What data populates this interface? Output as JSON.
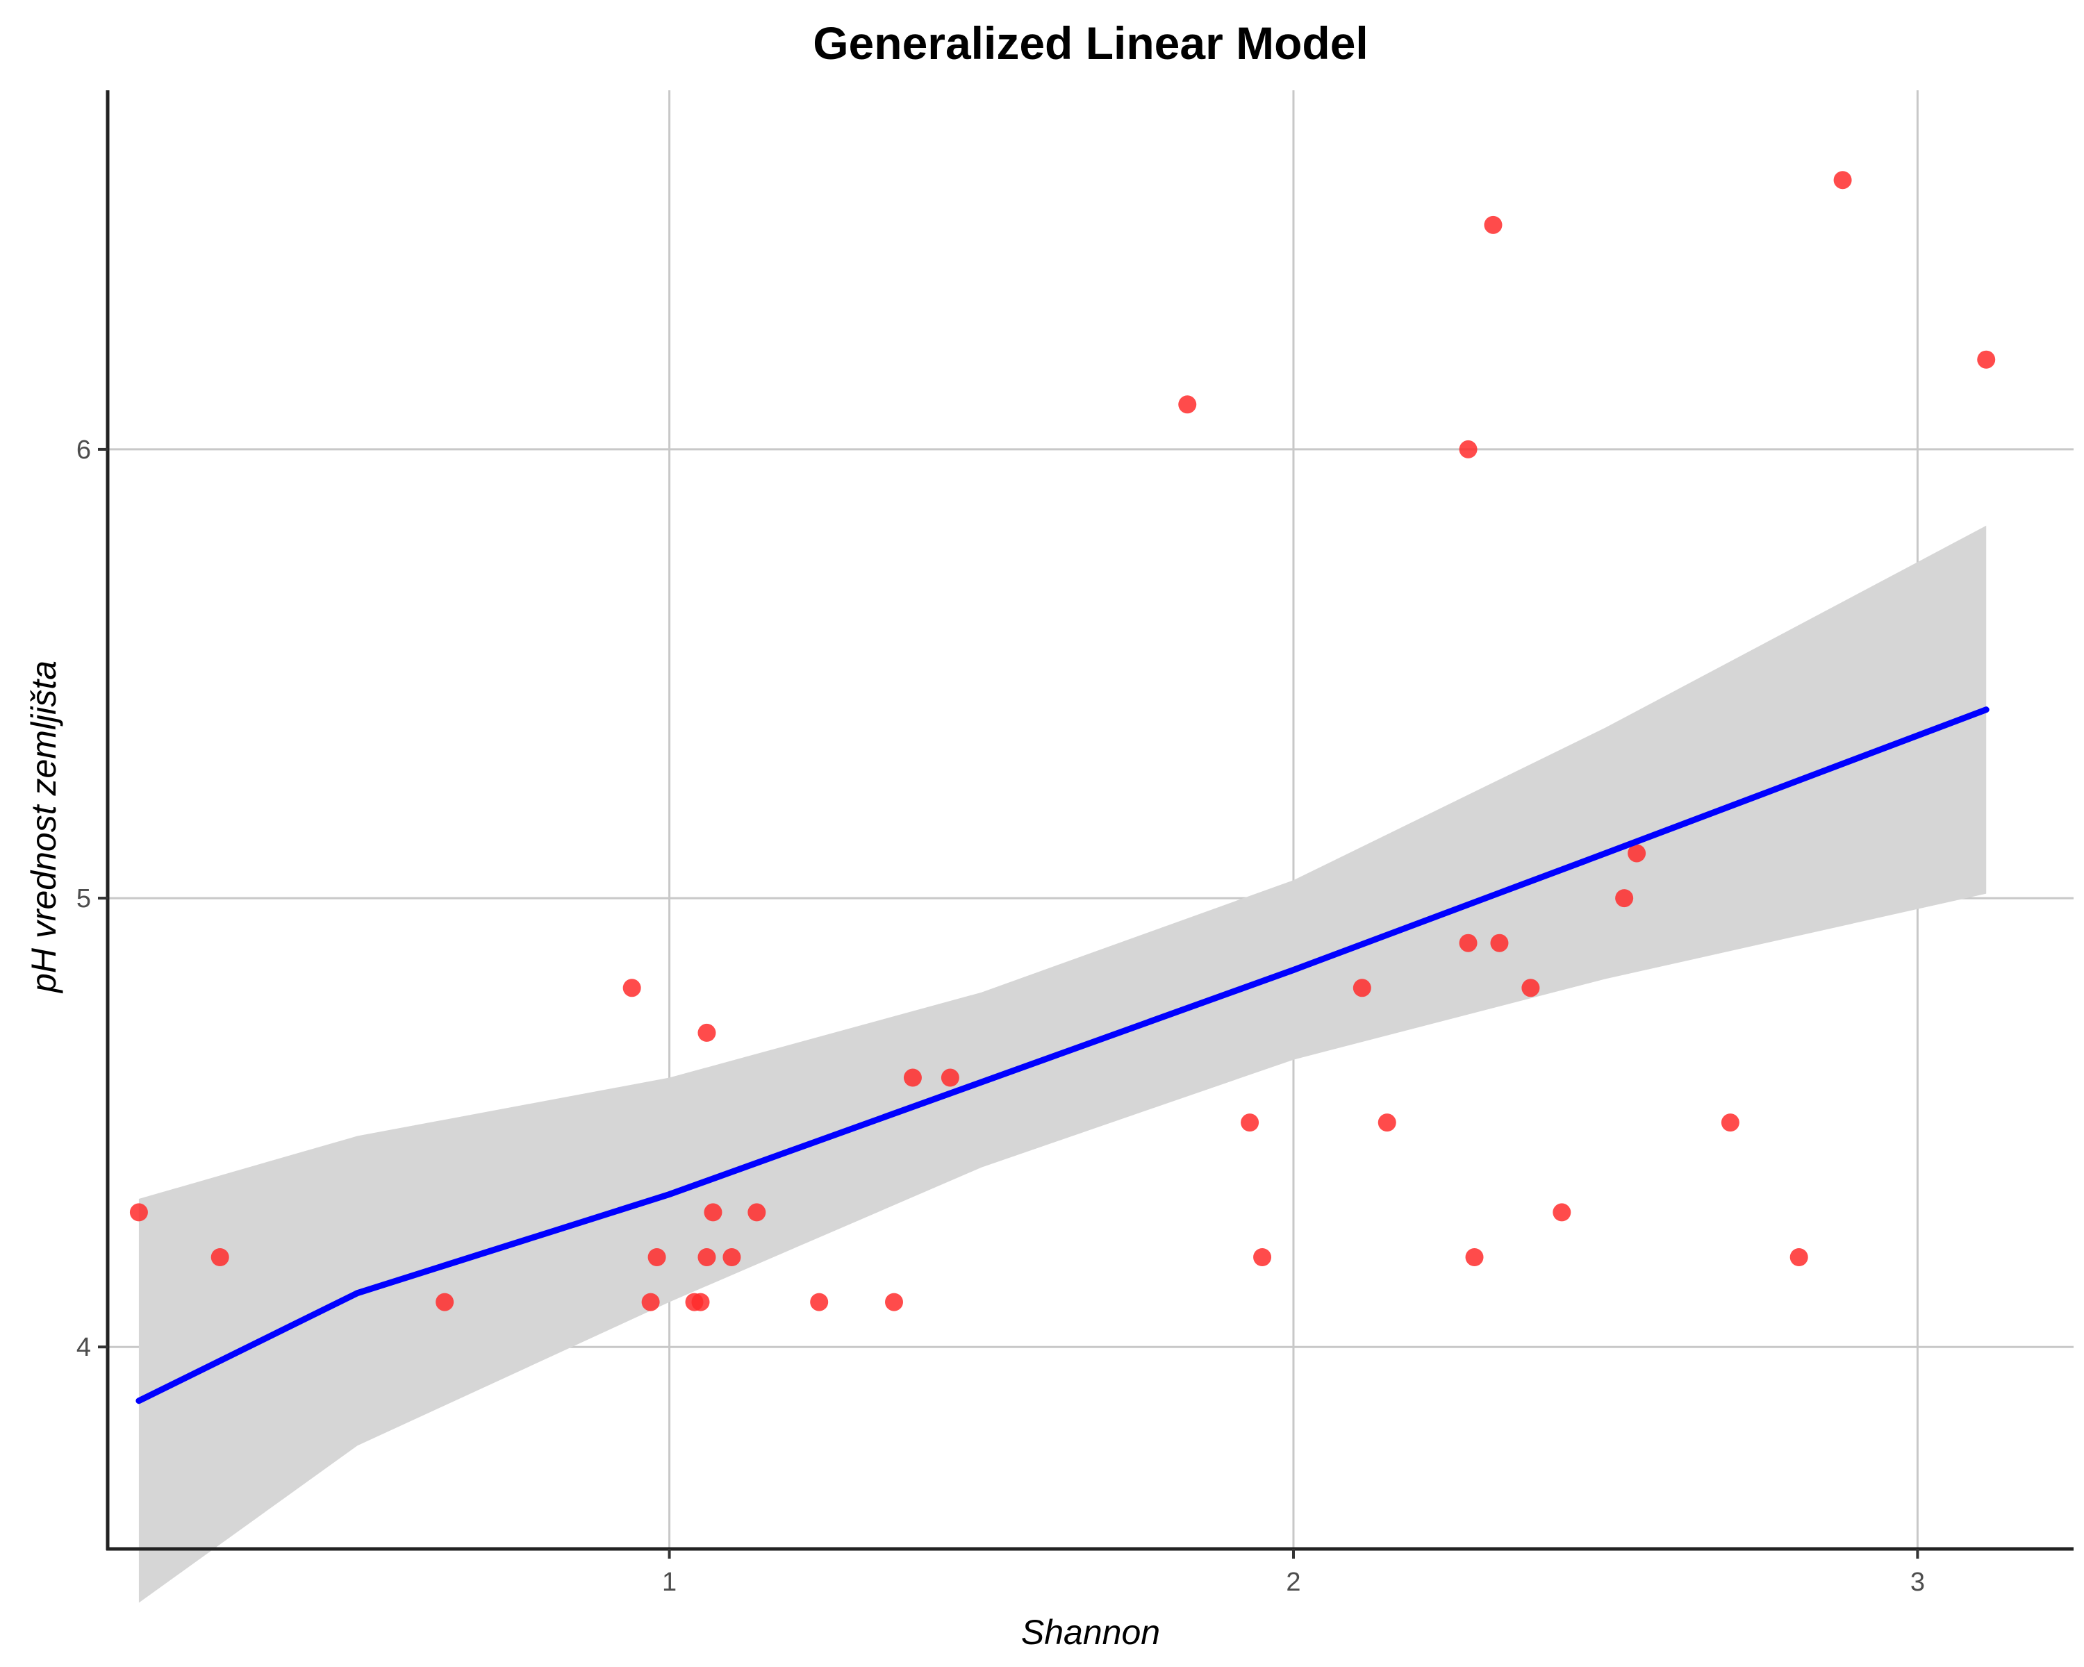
{
  "chart_data": {
    "type": "scatter",
    "title": "Generalized Linear Model",
    "xlabel": "Shannon",
    "ylabel": "pH vrednost zemljišta",
    "xlim": [
      0.1,
      3.25
    ],
    "ylim": [
      3.55,
      6.8
    ],
    "x_ticks": [
      "1",
      "2",
      "3"
    ],
    "y_ticks": [
      "4",
      "5",
      "6"
    ],
    "x_tick_values": [
      1,
      2,
      3
    ],
    "y_tick_values": [
      4,
      5,
      6
    ],
    "grid": true,
    "point_color": "#ff2b2b",
    "line_color": "#0000ff",
    "band_color": "#d6d6d6",
    "points": [
      [
        0.15,
        4.3
      ],
      [
        0.28,
        4.2
      ],
      [
        0.64,
        4.1
      ],
      [
        0.94,
        4.8
      ],
      [
        0.98,
        4.2
      ],
      [
        0.97,
        4.1
      ],
      [
        1.04,
        4.1
      ],
      [
        1.05,
        4.1
      ],
      [
        1.06,
        4.2
      ],
      [
        1.07,
        4.3
      ],
      [
        1.06,
        4.7
      ],
      [
        1.1,
        4.2
      ],
      [
        1.14,
        4.3
      ],
      [
        1.24,
        4.1
      ],
      [
        1.36,
        4.1
      ],
      [
        1.39,
        4.6
      ],
      [
        1.45,
        4.6
      ],
      [
        1.83,
        6.1
      ],
      [
        1.93,
        4.5
      ],
      [
        1.95,
        4.2
      ],
      [
        2.11,
        4.8
      ],
      [
        2.15,
        4.5
      ],
      [
        2.28,
        6.0
      ],
      [
        2.28,
        4.9
      ],
      [
        2.29,
        4.2
      ],
      [
        2.32,
        6.5
      ],
      [
        2.33,
        4.9
      ],
      [
        2.38,
        4.8
      ],
      [
        2.43,
        4.3
      ],
      [
        2.53,
        5.0
      ],
      [
        2.55,
        5.1
      ],
      [
        2.7,
        4.5
      ],
      [
        2.81,
        4.2
      ],
      [
        2.88,
        6.6
      ],
      [
        3.11,
        6.2
      ]
    ],
    "fit": {
      "x": [
        0.15,
        0.5,
        1.0,
        1.5,
        2.0,
        2.5,
        3.11
      ],
      "y": [
        3.88,
        4.12,
        4.34,
        4.59,
        4.84,
        5.1,
        5.42
      ],
      "lower": [
        3.43,
        3.78,
        4.1,
        4.4,
        4.64,
        4.82,
        5.01
      ],
      "upper": [
        4.33,
        4.47,
        4.6,
        4.79,
        5.04,
        5.38,
        5.83
      ]
    }
  }
}
